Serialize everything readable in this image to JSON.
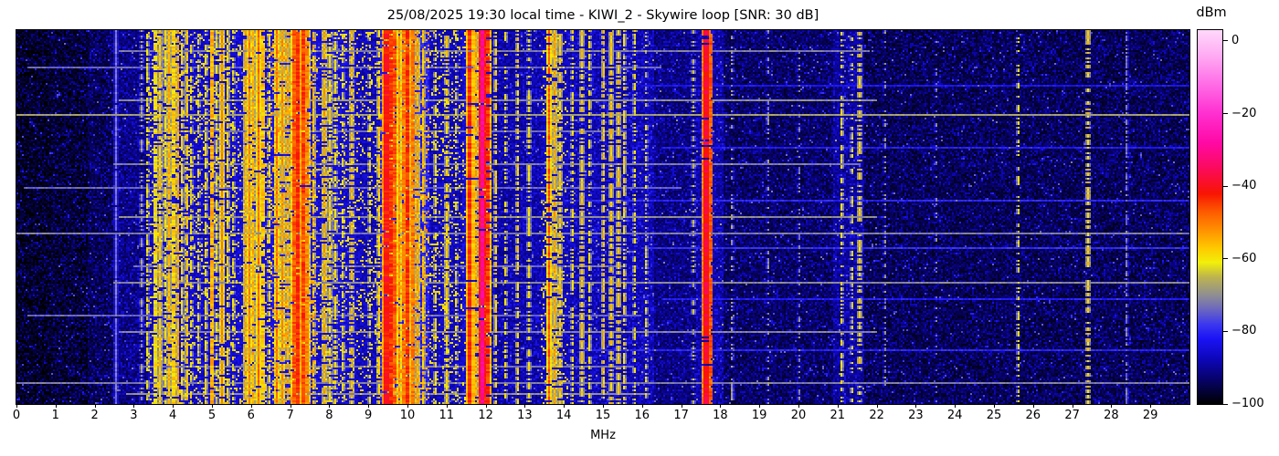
{
  "figure": {
    "title": "25/08/2025 19:30 local time - KIWI_2 - Skywire loop [SNR: 30 dB]",
    "xlabel": "MHz",
    "colorbar_label": "dBm"
  },
  "chart_data": {
    "type": "heatmap",
    "subtype": "radio-spectrum-waterfall",
    "title": "25/08/2025 19:30 local time - KIWI_2 - Skywire loop [SNR: 30 dB]",
    "xlabel": "MHz",
    "x_range": [
      0,
      30
    ],
    "x_ticks": [
      0,
      1,
      2,
      3,
      4,
      5,
      6,
      7,
      8,
      9,
      10,
      11,
      12,
      13,
      14,
      15,
      16,
      17,
      18,
      19,
      20,
      21,
      22,
      23,
      24,
      25,
      26,
      27,
      28,
      29
    ],
    "y_axis": "time (waterfall rows, no tick labels shown)",
    "grid": false,
    "legend": "colorbar right",
    "colorbar": {
      "label": "dBm",
      "vmax": 3,
      "vmin": -100,
      "ticks": [
        {
          "v": 0,
          "label": "0"
        },
        {
          "v": -20,
          "label": "−20"
        },
        {
          "v": -40,
          "label": "−40"
        },
        {
          "v": -60,
          "label": "−60"
        },
        {
          "v": -80,
          "label": "−80"
        },
        {
          "v": -100,
          "label": "−100"
        }
      ]
    },
    "colormap_stops": [
      [
        3,
        "#ffd9fb"
      ],
      [
        -4,
        "#ffabf3"
      ],
      [
        -12,
        "#ff6ce6"
      ],
      [
        -20,
        "#ff2fd0"
      ],
      [
        -28,
        "#ff09a5"
      ],
      [
        -35,
        "#fb0a5d"
      ],
      [
        -42,
        "#f81403"
      ],
      [
        -47,
        "#fd5a00"
      ],
      [
        -52,
        "#ff9000"
      ],
      [
        -57,
        "#ffc800"
      ],
      [
        -61,
        "#f2ef0a"
      ],
      [
        -65,
        "#bdb44e"
      ],
      [
        -70,
        "#8f8e91"
      ],
      [
        -74,
        "#6a66c0"
      ],
      [
        -78,
        "#3c38ee"
      ],
      [
        -82,
        "#1b13f4"
      ],
      [
        -88,
        "#0d06b4"
      ],
      [
        -94,
        "#06025e"
      ],
      [
        -100,
        "#000000"
      ]
    ],
    "noise_floor_dbm": [
      [
        0.0,
        0.9,
        -98
      ],
      [
        0.9,
        1.8,
        -97
      ],
      [
        1.8,
        2.5,
        -95
      ],
      [
        2.5,
        3.35,
        -92
      ],
      [
        3.35,
        4.6,
        -86
      ],
      [
        4.6,
        5.6,
        -86
      ],
      [
        5.6,
        6.5,
        -85
      ],
      [
        6.5,
        7.65,
        -83
      ],
      [
        7.65,
        8.7,
        -85
      ],
      [
        8.7,
        9.3,
        -87
      ],
      [
        9.3,
        10.55,
        -81
      ],
      [
        10.55,
        11.4,
        -87
      ],
      [
        11.4,
        12.15,
        -85
      ],
      [
        12.15,
        13.4,
        -89
      ],
      [
        13.4,
        14.1,
        -87
      ],
      [
        14.1,
        15.6,
        -88
      ],
      [
        15.6,
        16.3,
        -88
      ],
      [
        16.3,
        17.4,
        -92
      ],
      [
        17.4,
        18.1,
        -89
      ],
      [
        18.1,
        20.9,
        -94
      ],
      [
        20.9,
        21.7,
        -90
      ],
      [
        21.7,
        27.0,
        -95
      ],
      [
        27.0,
        30.0,
        -95
      ]
    ],
    "carriers_mhz_dbm_halfwidth_duty": [
      [
        2.55,
        -72,
        0.025,
        0.95
      ],
      [
        3.2,
        -68,
        0.024,
        0.5
      ],
      [
        3.35,
        -62,
        0.024,
        0.6
      ],
      [
        3.55,
        -60,
        0.025,
        0.8
      ],
      [
        3.66,
        -57,
        0.025,
        0.85
      ],
      [
        3.8,
        -61,
        0.025,
        0.7
      ],
      [
        3.91,
        -55,
        0.028,
        0.9
      ],
      [
        4.02,
        -58,
        0.025,
        0.8
      ],
      [
        4.12,
        -54,
        0.028,
        0.9
      ],
      [
        4.24,
        -60,
        0.025,
        0.7
      ],
      [
        4.35,
        -57,
        0.025,
        0.8
      ],
      [
        4.47,
        -62,
        0.024,
        0.6
      ],
      [
        4.67,
        -63,
        0.024,
        0.5
      ],
      [
        4.85,
        -60,
        0.025,
        0.7
      ],
      [
        5.0,
        -55,
        0.028,
        0.85
      ],
      [
        5.12,
        -62,
        0.024,
        0.6
      ],
      [
        5.26,
        -51,
        0.03,
        0.9
      ],
      [
        5.41,
        -59,
        0.025,
        0.7
      ],
      [
        5.56,
        -62,
        0.024,
        0.5
      ],
      [
        5.85,
        -54,
        0.03,
        0.9
      ],
      [
        5.96,
        -51,
        0.03,
        0.9
      ],
      [
        6.07,
        -55,
        0.028,
        0.85
      ],
      [
        6.18,
        -49,
        0.032,
        0.92
      ],
      [
        6.31,
        -57,
        0.025,
        0.8
      ],
      [
        6.46,
        -60,
        0.025,
        0.6
      ],
      [
        6.66,
        -50,
        0.032,
        0.9
      ],
      [
        6.81,
        -52,
        0.032,
        0.9
      ],
      [
        6.95,
        -55,
        0.028,
        0.8
      ],
      [
        7.1,
        -47,
        0.04,
        0.95
      ],
      [
        7.21,
        -43,
        0.05,
        0.97
      ],
      [
        7.33,
        -45,
        0.04,
        0.95
      ],
      [
        7.43,
        -51,
        0.032,
        0.9
      ],
      [
        7.61,
        -57,
        0.025,
        0.7
      ],
      [
        7.86,
        -54,
        0.03,
        0.8
      ],
      [
        8.01,
        -58,
        0.025,
        0.7
      ],
      [
        8.16,
        -60,
        0.025,
        0.6
      ],
      [
        8.36,
        -61,
        0.024,
        0.5
      ],
      [
        8.58,
        -56,
        0.025,
        0.7
      ],
      [
        9.02,
        -62,
        0.024,
        0.5
      ],
      [
        9.26,
        -58,
        0.025,
        0.7
      ],
      [
        9.46,
        -41,
        0.05,
        0.97
      ],
      [
        9.57,
        -44,
        0.045,
        0.95
      ],
      [
        9.67,
        -47,
        0.04,
        0.9
      ],
      [
        9.79,
        -52,
        0.035,
        0.9
      ],
      [
        9.91,
        -50,
        0.035,
        0.9
      ],
      [
        10.01,
        -44,
        0.05,
        0.95
      ],
      [
        10.13,
        -50,
        0.035,
        0.9
      ],
      [
        10.26,
        -54,
        0.03,
        0.85
      ],
      [
        10.41,
        -57,
        0.025,
        0.8
      ],
      [
        10.71,
        -60,
        0.024,
        0.6
      ],
      [
        11.01,
        -58,
        0.025,
        0.7
      ],
      [
        11.26,
        -62,
        0.024,
        0.5
      ],
      [
        11.61,
        -44,
        0.045,
        0.95
      ],
      [
        11.76,
        -54,
        0.028,
        0.8
      ],
      [
        11.91,
        -30,
        0.04,
        0.97
      ],
      [
        12.06,
        -44,
        0.045,
        0.9
      ],
      [
        12.26,
        -58,
        0.024,
        0.6
      ],
      [
        12.51,
        -60,
        0.024,
        0.5
      ],
      [
        12.81,
        -58,
        0.024,
        0.6
      ],
      [
        13.11,
        -60,
        0.024,
        0.5
      ],
      [
        13.61,
        -47,
        0.035,
        0.9
      ],
      [
        13.76,
        -54,
        0.028,
        0.8
      ],
      [
        13.91,
        -57,
        0.025,
        0.7
      ],
      [
        14.21,
        -60,
        0.024,
        0.5
      ],
      [
        14.46,
        -57,
        0.025,
        0.7
      ],
      [
        14.66,
        -60,
        0.024,
        0.6
      ],
      [
        15.01,
        -57,
        0.025,
        0.7
      ],
      [
        15.21,
        -57,
        0.025,
        0.7
      ],
      [
        15.39,
        -57,
        0.025,
        0.7
      ],
      [
        15.56,
        -59,
        0.024,
        0.6
      ],
      [
        15.81,
        -61,
        0.024,
        0.5
      ],
      [
        16.11,
        -63,
        0.023,
        0.4
      ],
      [
        17.31,
        -66,
        0.022,
        0.4
      ],
      [
        17.64,
        -39,
        0.05,
        0.97
      ],
      [
        17.76,
        -47,
        0.028,
        0.9
      ],
      [
        18.31,
        -68,
        0.022,
        0.4
      ],
      [
        19.21,
        -70,
        0.02,
        0.3
      ],
      [
        20.01,
        -71,
        0.02,
        0.3
      ],
      [
        21.11,
        -60,
        0.025,
        0.45
      ],
      [
        21.36,
        -63,
        0.023,
        0.4
      ],
      [
        21.56,
        -58,
        0.025,
        0.5
      ],
      [
        22.21,
        -70,
        0.02,
        0.3
      ],
      [
        23.51,
        -72,
        0.02,
        0.25
      ],
      [
        25.61,
        -62,
        0.022,
        0.45
      ],
      [
        27.41,
        -58,
        0.022,
        0.5
      ],
      [
        28.41,
        -72,
        0.022,
        0.6
      ]
    ],
    "broadband_streaks_t_f1_f2_dbm": [
      [
        0.055,
        2.6,
        21.8,
        -72
      ],
      [
        0.1,
        0.3,
        16.5,
        -74
      ],
      [
        0.145,
        16.0,
        30.0,
        -82
      ],
      [
        0.185,
        2.6,
        22.0,
        -70
      ],
      [
        0.225,
        0.0,
        30.0,
        -68
      ],
      [
        0.27,
        3.3,
        15.6,
        -73
      ],
      [
        0.315,
        16.5,
        30.0,
        -81
      ],
      [
        0.36,
        2.5,
        21.6,
        -72
      ],
      [
        0.42,
        0.2,
        17.0,
        -74
      ],
      [
        0.455,
        14.0,
        30.0,
        -80
      ],
      [
        0.5,
        2.6,
        22.0,
        -70
      ],
      [
        0.545,
        0.0,
        30.0,
        -72
      ],
      [
        0.585,
        16.0,
        30.0,
        -79
      ],
      [
        0.63,
        3.0,
        15.5,
        -73
      ],
      [
        0.675,
        2.5,
        30.0,
        -71
      ],
      [
        0.72,
        16.5,
        30.0,
        -81
      ],
      [
        0.765,
        0.3,
        16.0,
        -74
      ],
      [
        0.81,
        2.6,
        22.0,
        -71
      ],
      [
        0.86,
        14.5,
        30.0,
        -80
      ],
      [
        0.9,
        3.2,
        15.8,
        -73
      ],
      [
        0.945,
        0.0,
        30.0,
        -72
      ],
      [
        0.975,
        2.8,
        16.2,
        -70
      ]
    ]
  }
}
